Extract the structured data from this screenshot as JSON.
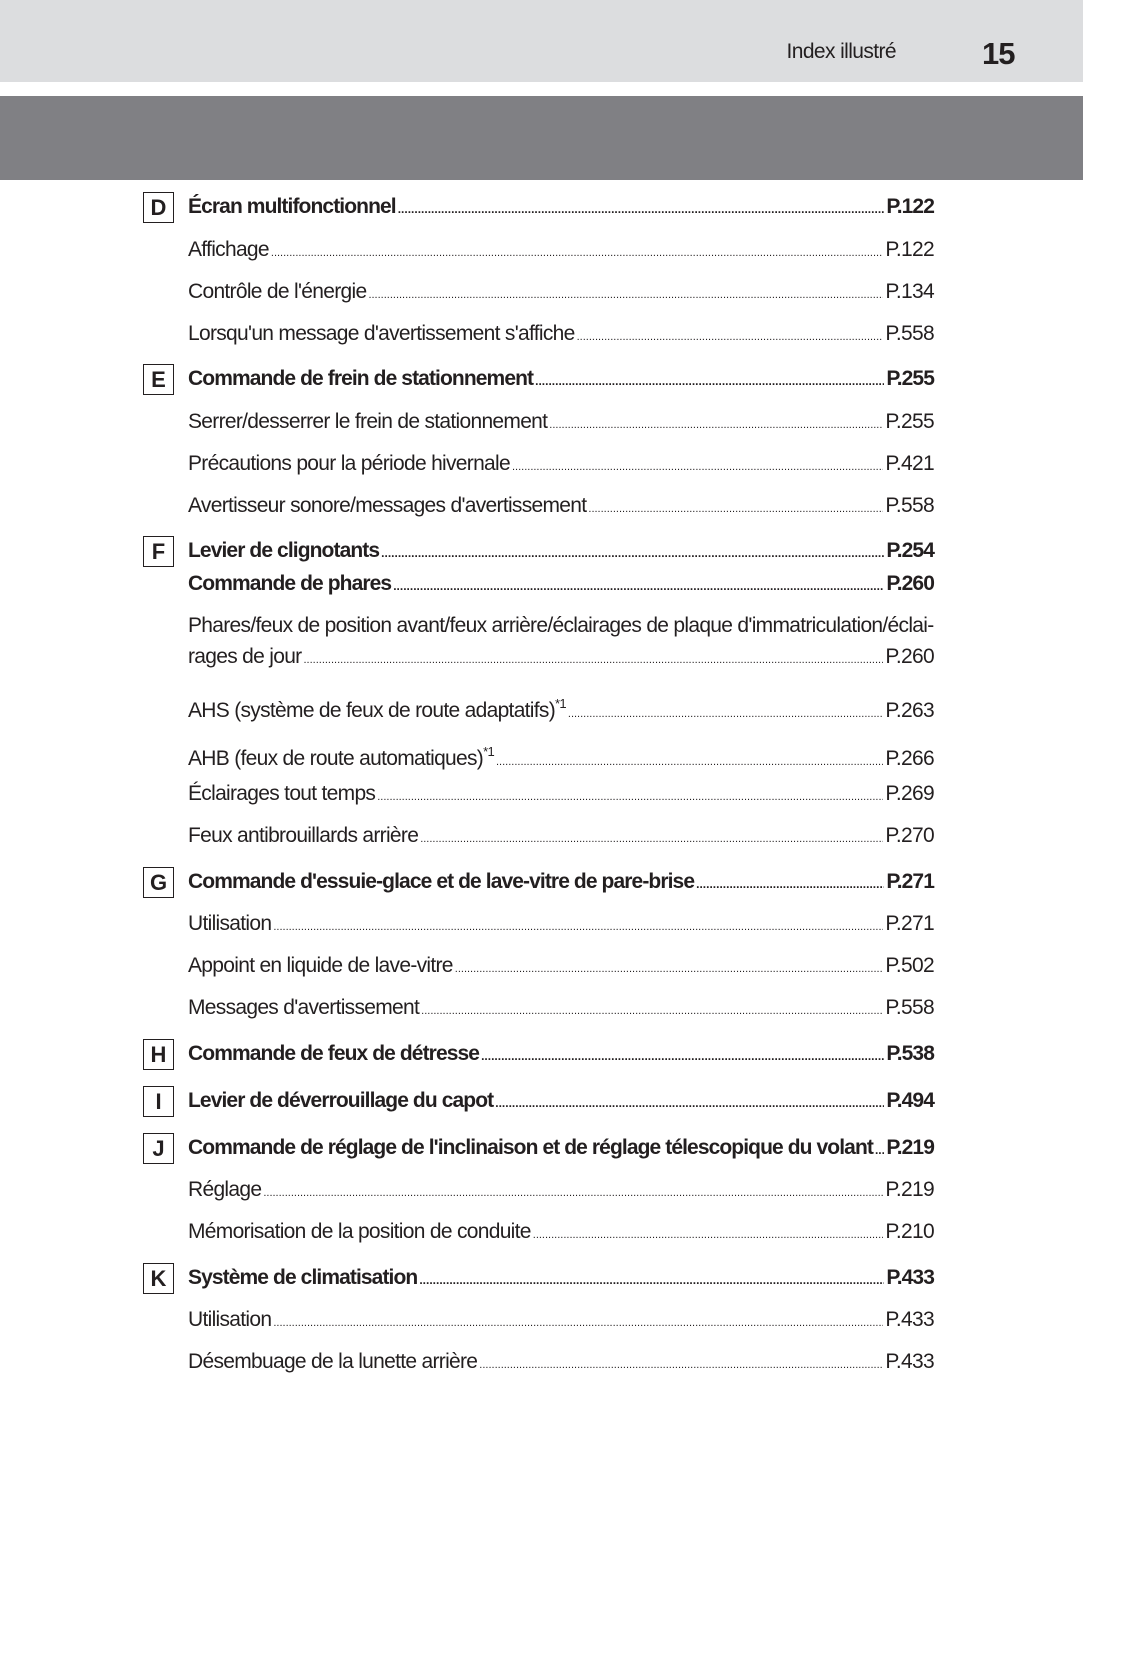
{
  "header": {
    "section_title": "Index illustré",
    "page_number": "15"
  },
  "entries": [
    {
      "letter": "D",
      "label": "Écran multifonctionnel",
      "page": "P.122",
      "bold": true,
      "top": 0
    },
    {
      "label": "Affichage",
      "page": "P.122"
    },
    {
      "label": "Contrôle de l'énergie",
      "page": "P.134"
    },
    {
      "label": "Lorsqu'un message d'avertissement s'affiche",
      "page": "P.558"
    },
    {
      "letter": "E",
      "label": "Commande de frein de stationnement",
      "page": "P.255",
      "bold": true
    },
    {
      "label": "Serrer/desserrer le frein de stationnement",
      "page": "P.255"
    },
    {
      "label": "Précautions pour la période hivernale",
      "page": "P.421"
    },
    {
      "label": "Avertisseur sonore/messages d'avertissement",
      "page": "P.558"
    },
    {
      "letter": "F",
      "label": "Levier de clignotants",
      "page": "P.254",
      "bold": true
    },
    {
      "label": "Commande de phares",
      "page": "P.260",
      "bold": true
    },
    {
      "label_line1": "Phares/feux de position avant/feux arrière/éclairages de plaque d'immatriculation/éclai-",
      "label": "rages de jour",
      "page": "P.260"
    },
    {
      "label": "AHS (système de feux de route adaptatifs)",
      "sup": "*1",
      "page": "P.263"
    },
    {
      "label": "AHB (feux de route automatiques)",
      "sup": "*1",
      "page": "P.266"
    },
    {
      "label": "Éclairages tout temps",
      "page": "P.269"
    },
    {
      "label": "Feux antibrouillards arrière",
      "page": "P.270"
    },
    {
      "letter": "G",
      "label": "Commande d'essuie-glace et de lave-vitre de pare-brise",
      "page": "P.271",
      "bold": true
    },
    {
      "label": "Utilisation",
      "page": "P.271"
    },
    {
      "label": "Appoint en liquide de lave-vitre",
      "page": "P.502"
    },
    {
      "label": "Messages d'avertissement",
      "page": "P.558"
    },
    {
      "letter": "H",
      "label": "Commande de feux de détresse",
      "page": "P.538",
      "bold": true
    },
    {
      "letter": "I",
      "label": "Levier de déverrouillage du capot",
      "page": "P.494",
      "bold": true
    },
    {
      "letter": "J",
      "label": "Commande de réglage de l'inclinaison et de réglage télescopique du volant",
      "page": "P.219",
      "bold": true
    },
    {
      "label": "Réglage",
      "page": "P.219"
    },
    {
      "label": "Mémorisation de la position de conduite",
      "page": "P.210"
    },
    {
      "letter": "K",
      "label": "Système de climatisation",
      "page": "P.433",
      "bold": true
    },
    {
      "label": "Utilisation",
      "page": "P.433"
    },
    {
      "label": "Désembuage de la lunette arrière",
      "page": "P.433"
    }
  ]
}
